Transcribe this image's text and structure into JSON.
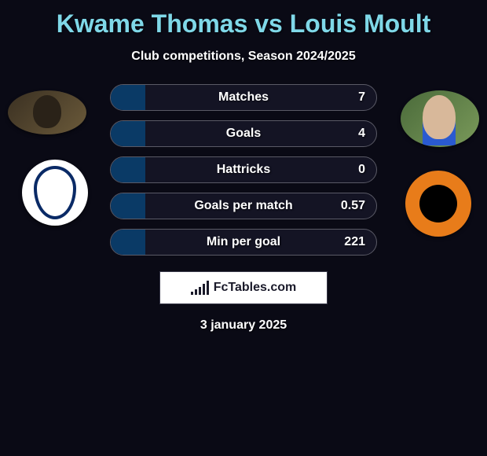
{
  "title": "Kwame Thomas vs Louis Moult",
  "subtitle": "Club competitions, Season 2024/2025",
  "date": "3 january 2025",
  "brand": "FcTables.com",
  "colors": {
    "title": "#7fd8e8",
    "background": "#0a0a15",
    "row_bg": "#141424",
    "row_border": "#5a5a66",
    "fill_left": "#0a3a66",
    "text": "#ffffff"
  },
  "players": {
    "left": {
      "name": "Kwame Thomas",
      "club": "Dundee FC"
    },
    "right": {
      "name": "Louis Moult",
      "club": "Dundee United"
    }
  },
  "stats": [
    {
      "label": "Matches",
      "right_value": "7",
      "left_fill_pct": 13
    },
    {
      "label": "Goals",
      "right_value": "4",
      "left_fill_pct": 13
    },
    {
      "label": "Hattricks",
      "right_value": "0",
      "left_fill_pct": 13
    },
    {
      "label": "Goals per match",
      "right_value": "0.57",
      "left_fill_pct": 13
    },
    {
      "label": "Min per goal",
      "right_value": "221",
      "left_fill_pct": 13
    }
  ],
  "logo_bars_heights": [
    4,
    7,
    10,
    14,
    18
  ]
}
